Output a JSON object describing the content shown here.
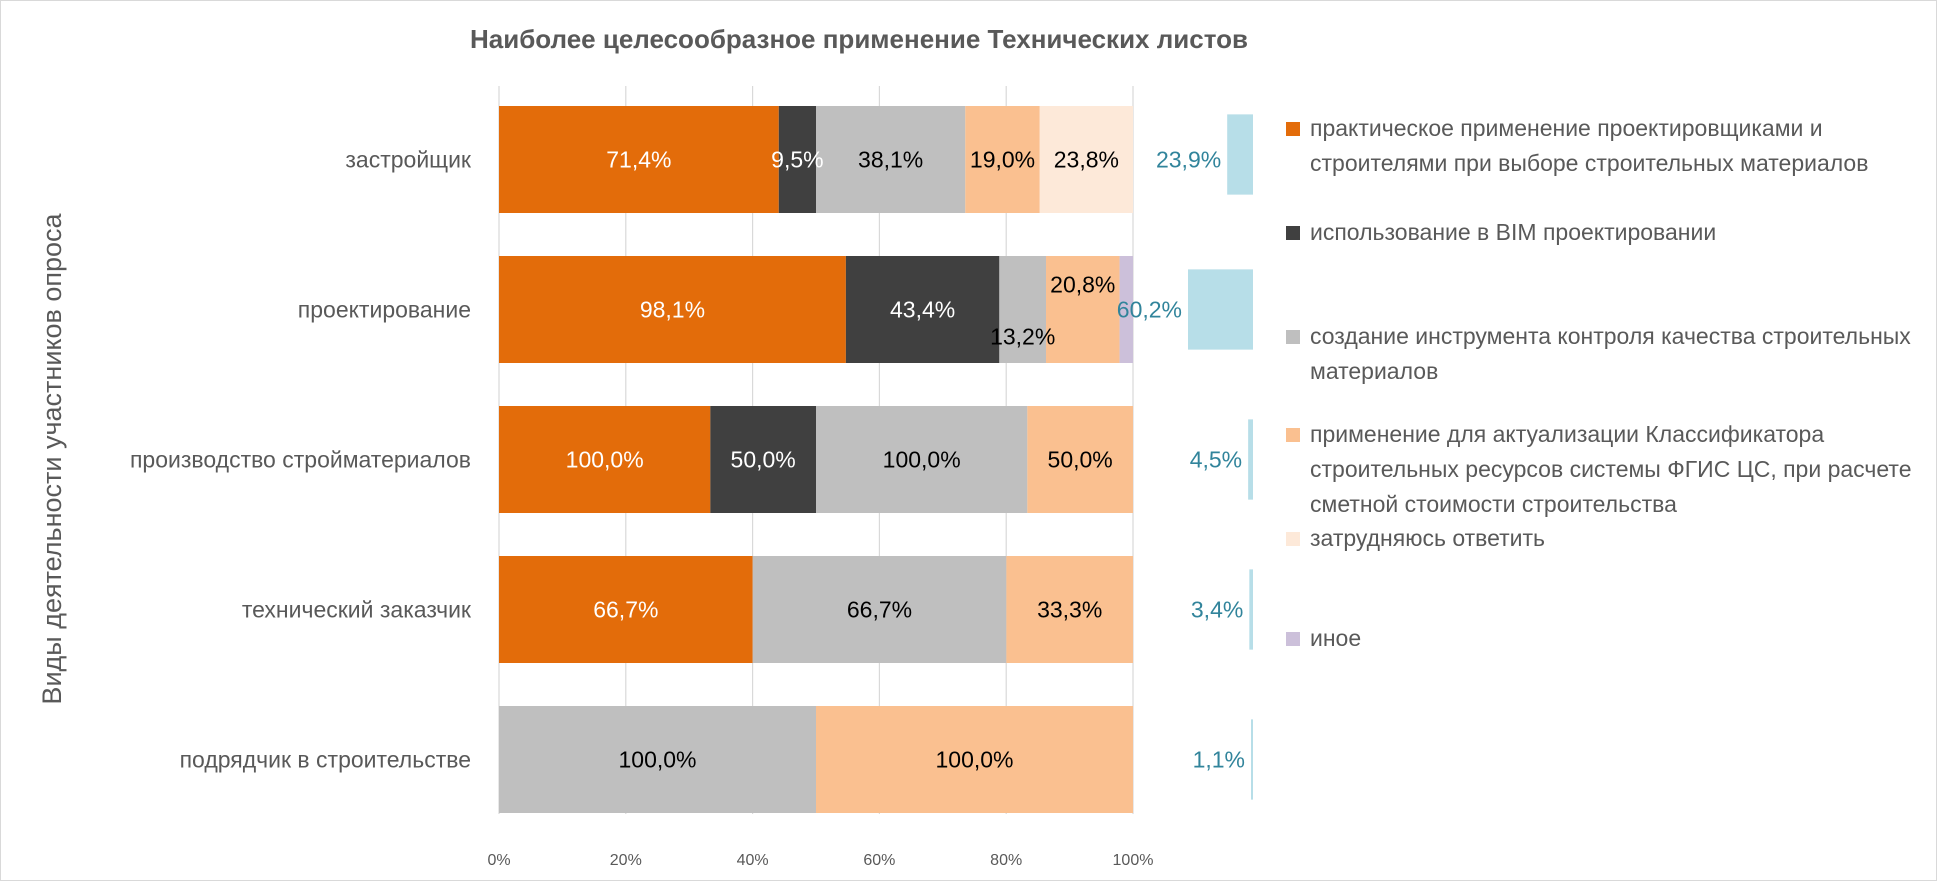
{
  "chart_data": {
    "type": "bar",
    "orientation": "horizontal",
    "stacked": "percent",
    "title": "Наиболее целесообразное применение Технических листов",
    "ylabel": "Виды деятельности участников опроса",
    "xlabel": "",
    "xlim": [
      0,
      1
    ],
    "x_tick_labels": [
      "0%",
      "20%",
      "40%",
      "60%",
      "80%",
      "100%"
    ],
    "grid": true,
    "legend_position": "right",
    "categories": [
      "застройщик",
      "проектирование",
      "производство стройматериалов",
      "технический заказчик",
      "подрядчик в строительстве"
    ],
    "series": [
      {
        "name": "практическое применение проектировщиками и строителями при выборе строительных материалов",
        "color": "#E36C0A",
        "label_color": "#ffffff",
        "values": [
          71.4,
          98.1,
          100.0,
          66.7,
          null
        ],
        "labels": [
          "71,4%",
          "98,1%",
          "100,0%",
          "66,7%",
          ""
        ]
      },
      {
        "name": "использование в BIM проектировании",
        "color": "#404040",
        "label_color": "#ffffff",
        "values": [
          9.5,
          43.4,
          50.0,
          null,
          null
        ],
        "labels": [
          "9,5%",
          "43,4%",
          "50,0%",
          "",
          ""
        ]
      },
      {
        "name": "создание инструмента контроля качества строительных материалов",
        "color": "#BFBFBF",
        "label_color": "#000000",
        "values": [
          38.1,
          13.2,
          100.0,
          66.7,
          100.0
        ],
        "labels": [
          "38,1%",
          "13,2%",
          "100,0%",
          "66,7%",
          "100,0%"
        ]
      },
      {
        "name": "применение для актуализации Классификатора строительных ресурсов системы ФГИС ЦС, при расчете сметной стоимости строительства",
        "color": "#FAC090",
        "label_color": "#000000",
        "values": [
          19.0,
          20.8,
          50.0,
          33.3,
          100.0
        ],
        "labels": [
          "19,0%",
          "20,8%",
          "50,0%",
          "33,3%",
          "100,0%"
        ]
      },
      {
        "name": "затрудняюсь ответить",
        "color": "#FDE9D9",
        "label_color": "#000000",
        "values": [
          23.8,
          null,
          null,
          null,
          null
        ],
        "labels": [
          "23,8%",
          "",
          "",
          "",
          ""
        ]
      },
      {
        "name": "иное",
        "color": "#CCC0DA",
        "label_color": "#000000",
        "values": [
          null,
          3.8,
          null,
          null,
          null
        ],
        "labels": [
          "",
          "",
          "",
          "",
          ""
        ]
      }
    ],
    "share_of_respondents": {
      "color": "#B7DEE8",
      "label_color": "#31849B",
      "values": [
        23.9,
        60.2,
        4.5,
        3.4,
        1.1
      ],
      "labels": [
        "23,9%",
        "60,2%",
        "4,5%",
        "3,4%",
        "1,1%"
      ]
    }
  }
}
